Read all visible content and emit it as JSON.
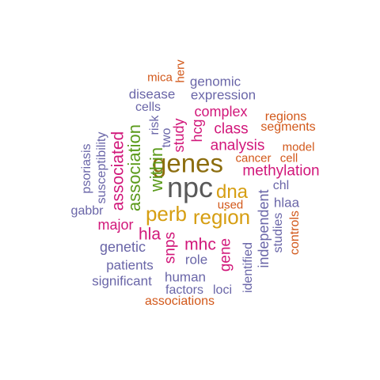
{
  "palette": {
    "gray": "#595959",
    "olive": "#8c6d0f",
    "gold": "#d69e12",
    "magenta": "#d1177a",
    "green": "#5a9a1a",
    "purple": "#6a66a8",
    "orange": "#d2581a"
  },
  "words": [
    {
      "text": "npc",
      "color": "#595959",
      "orientation": "horizontal"
    },
    {
      "text": "genes",
      "color": "#8c6d0f",
      "orientation": "horizontal"
    },
    {
      "text": "perb",
      "color": "#d69e12",
      "orientation": "horizontal"
    },
    {
      "text": "region",
      "color": "#d69e12",
      "orientation": "horizontal"
    },
    {
      "text": "dna",
      "color": "#d69e12",
      "orientation": "horizontal"
    },
    {
      "text": "within",
      "color": "#5a9a1a",
      "orientation": "vertical"
    },
    {
      "text": "association",
      "color": "#5a9a1a",
      "orientation": "vertical"
    },
    {
      "text": "associated",
      "color": "#d1177a",
      "orientation": "vertical"
    },
    {
      "text": "hla",
      "color": "#d1177a",
      "orientation": "horizontal"
    },
    {
      "text": "mhc",
      "color": "#d1177a",
      "orientation": "horizontal"
    },
    {
      "text": "snps",
      "color": "#d1177a",
      "orientation": "vertical"
    },
    {
      "text": "gene",
      "color": "#d1177a",
      "orientation": "vertical"
    },
    {
      "text": "methylation",
      "color": "#d1177a",
      "orientation": "horizontal"
    },
    {
      "text": "analysis",
      "color": "#d1177a",
      "orientation": "horizontal"
    },
    {
      "text": "class",
      "color": "#d1177a",
      "orientation": "horizontal"
    },
    {
      "text": "complex",
      "color": "#d1177a",
      "orientation": "horizontal"
    },
    {
      "text": "hcg",
      "color": "#d1177a",
      "orientation": "vertical"
    },
    {
      "text": "study",
      "color": "#d1177a",
      "orientation": "vertical"
    },
    {
      "text": "major",
      "color": "#d1177a",
      "orientation": "horizontal"
    },
    {
      "text": "independent",
      "color": "#6a66a8",
      "orientation": "vertical"
    },
    {
      "text": "identified",
      "color": "#6a66a8",
      "orientation": "vertical"
    },
    {
      "text": "studies",
      "color": "#6a66a8",
      "orientation": "vertical"
    },
    {
      "text": "controls",
      "color": "#d2581a",
      "orientation": "vertical"
    },
    {
      "text": "genetic",
      "color": "#6a66a8",
      "orientation": "horizontal"
    },
    {
      "text": "patients",
      "color": "#6a66a8",
      "orientation": "horizontal"
    },
    {
      "text": "significant",
      "color": "#6a66a8",
      "orientation": "horizontal"
    },
    {
      "text": "human",
      "color": "#6a66a8",
      "orientation": "horizontal"
    },
    {
      "text": "role",
      "color": "#6a66a8",
      "orientation": "horizontal"
    },
    {
      "text": "factors",
      "color": "#6a66a8",
      "orientation": "horizontal"
    },
    {
      "text": "loci",
      "color": "#6a66a8",
      "orientation": "horizontal"
    },
    {
      "text": "associations",
      "color": "#d2581a",
      "orientation": "horizontal"
    },
    {
      "text": "gabbr",
      "color": "#6a66a8",
      "orientation": "horizontal"
    },
    {
      "text": "psoriasis",
      "color": "#6a66a8",
      "orientation": "vertical"
    },
    {
      "text": "susceptibility",
      "color": "#6a66a8",
      "orientation": "vertical"
    },
    {
      "text": "disease",
      "color": "#6a66a8",
      "orientation": "horizontal"
    },
    {
      "text": "expression",
      "color": "#6a66a8",
      "orientation": "horizontal"
    },
    {
      "text": "genomic",
      "color": "#6a66a8",
      "orientation": "horizontal"
    },
    {
      "text": "cells",
      "color": "#6a66a8",
      "orientation": "horizontal"
    },
    {
      "text": "mica",
      "color": "#d2581a",
      "orientation": "horizontal"
    },
    {
      "text": "herv",
      "color": "#d2581a",
      "orientation": "vertical"
    },
    {
      "text": "risk",
      "color": "#6a66a8",
      "orientation": "vertical"
    },
    {
      "text": "two",
      "color": "#6a66a8",
      "orientation": "vertical"
    },
    {
      "text": "regions",
      "color": "#d2581a",
      "orientation": "horizontal"
    },
    {
      "text": "segments",
      "color": "#d2581a",
      "orientation": "horizontal"
    },
    {
      "text": "model",
      "color": "#d2581a",
      "orientation": "horizontal"
    },
    {
      "text": "cancer",
      "color": "#d2581a",
      "orientation": "horizontal"
    },
    {
      "text": "cell",
      "color": "#d2581a",
      "orientation": "horizontal"
    },
    {
      "text": "chl",
      "color": "#6a66a8",
      "orientation": "horizontal"
    },
    {
      "text": "hlaa",
      "color": "#6a66a8",
      "orientation": "horizontal"
    },
    {
      "text": "used",
      "color": "#d2581a",
      "orientation": "horizontal"
    }
  ]
}
